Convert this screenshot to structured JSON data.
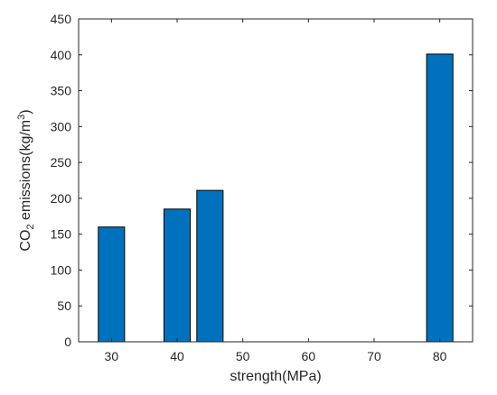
{
  "chart_data": {
    "type": "bar",
    "x": [
      30,
      40,
      45,
      80
    ],
    "values": [
      160,
      185,
      211,
      401
    ],
    "bar_width": 4,
    "xlabel": "strength(MPa)",
    "ylabel": {
      "prefix": "CO",
      "sub": "2",
      "middle": " emissions(kg/m",
      "sup": "3",
      "suffix": ")"
    },
    "xlim": [
      25,
      85
    ],
    "ylim": [
      0,
      450
    ],
    "xticks": [
      30,
      40,
      50,
      60,
      70,
      80
    ],
    "yticks": [
      0,
      50,
      100,
      150,
      200,
      250,
      300,
      350,
      400,
      450
    ],
    "grid": false,
    "bar_color": "#0072BD",
    "edge_color": "#000000"
  }
}
